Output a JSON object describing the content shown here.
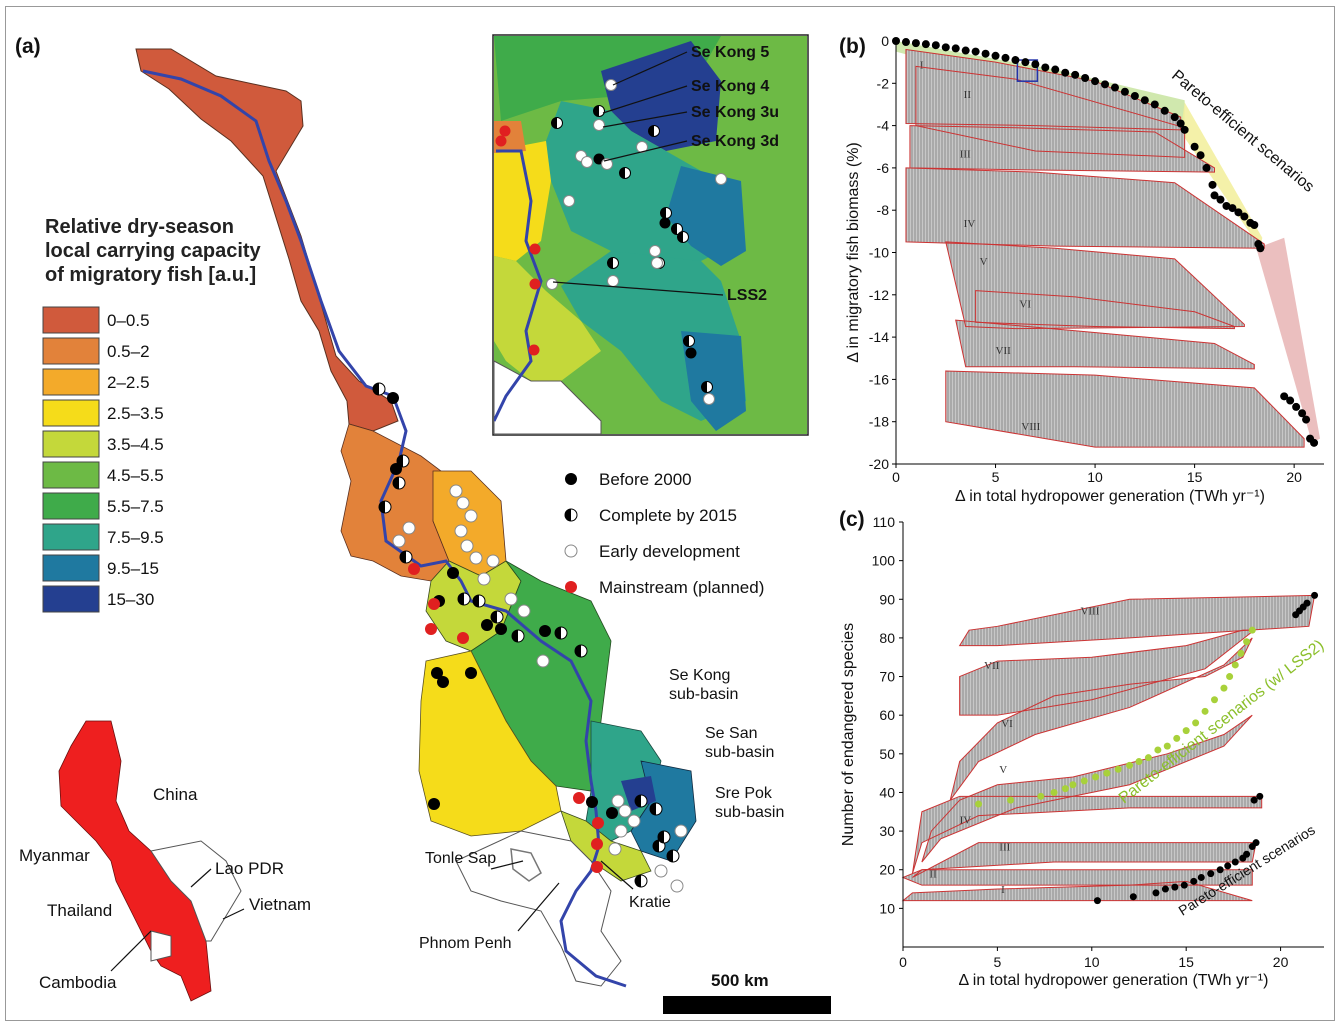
{
  "panels": {
    "a": "(a)",
    "b": "(b)",
    "c": "(c)"
  },
  "legend": {
    "title_lines": [
      "Relative dry-season",
      "local carrying capacity",
      "of migratory fish [a.u.]"
    ],
    "items": [
      {
        "label": "0–0.5",
        "color": "#d05a3c"
      },
      {
        "label": "0.5–2",
        "color": "#e2823a"
      },
      {
        "label": "2–2.5",
        "color": "#f3aa2a"
      },
      {
        "label": "2.5–3.5",
        "color": "#f5dc1a"
      },
      {
        "label": "3.5–4.5",
        "color": "#c4d83a"
      },
      {
        "label": "4.5–5.5",
        "color": "#6dba45"
      },
      {
        "label": "5.5–7.5",
        "color": "#3fab4a"
      },
      {
        "label": "7.5–9.5",
        "color": "#2fa58a"
      },
      {
        "label": "9.5–15",
        "color": "#1f79a0"
      },
      {
        "label": "15–30",
        "color": "#243f90"
      }
    ]
  },
  "dam_legend": [
    {
      "label": "Before 2000",
      "type": "before"
    },
    {
      "label": "Complete by 2015",
      "type": "complete"
    },
    {
      "label": "Early development",
      "type": "early"
    },
    {
      "label": "Mainstream (planned)",
      "type": "mainstream"
    }
  ],
  "inset_labels": [
    "Se Kong 5",
    "Se Kong 4",
    "Se Kong 3u",
    "Se Kong 3d",
    "LSS2"
  ],
  "map_labels": {
    "sekong": [
      "Se Kong",
      "sub-basin"
    ],
    "sesan": [
      "Se San",
      "sub-basin"
    ],
    "srepok": [
      "Sre Pok",
      "sub-basin"
    ],
    "tonle_sap": "Tonle Sap",
    "phnom_penh": "Phnom Penh",
    "kratie": "Kratie"
  },
  "countries": [
    "China",
    "Myanmar",
    "Lao PDR",
    "Thailand",
    "Vietnam",
    "Cambodia"
  ],
  "scale_bar": "500 km",
  "chart_data": [
    {
      "type": "scatter",
      "panel": "(b)",
      "xlabel": "Δ in total hydropower generation (TWh yr⁻¹)",
      "ylabel": "Δ in migratory fish biomass (%)",
      "xlim": [
        0,
        21.5
      ],
      "ylim": [
        -20,
        0
      ],
      "xticks": [
        0,
        5,
        10,
        15,
        20
      ],
      "yticks": [
        0,
        -2,
        -4,
        -6,
        -8,
        -10,
        -12,
        -14,
        -16,
        -18,
        -20
      ],
      "annotation": "Pareto-efficient scenarios",
      "groups": [
        "I",
        "II",
        "III",
        "IV",
        "V",
        "VI",
        "VII",
        "VIII"
      ],
      "pareto_front": [
        [
          0,
          0
        ],
        [
          0.5,
          -0.05
        ],
        [
          1,
          -0.1
        ],
        [
          1.5,
          -0.15
        ],
        [
          2,
          -0.2
        ],
        [
          2.5,
          -0.3
        ],
        [
          3,
          -0.35
        ],
        [
          3.5,
          -0.45
        ],
        [
          4,
          -0.5
        ],
        [
          4.5,
          -0.6
        ],
        [
          5,
          -0.7
        ],
        [
          5.5,
          -0.8
        ],
        [
          6,
          -0.9
        ],
        [
          6.5,
          -1.0
        ],
        [
          7,
          -1.1
        ],
        [
          7.5,
          -1.25
        ],
        [
          8,
          -1.35
        ],
        [
          8.5,
          -1.5
        ],
        [
          9,
          -1.6
        ],
        [
          9.5,
          -1.75
        ],
        [
          10,
          -1.9
        ],
        [
          10.5,
          -2.05
        ],
        [
          11,
          -2.2
        ],
        [
          11.5,
          -2.4
        ],
        [
          12,
          -2.6
        ],
        [
          12.5,
          -2.8
        ],
        [
          13,
          -3.0
        ],
        [
          13.5,
          -3.3
        ],
        [
          14,
          -3.6
        ],
        [
          14.3,
          -3.9
        ],
        [
          14.5,
          -4.2
        ],
        [
          15,
          -5.0
        ],
        [
          15.3,
          -5.4
        ],
        [
          15.6,
          -6.0
        ],
        [
          15.9,
          -6.8
        ],
        [
          16,
          -7.3
        ],
        [
          16.3,
          -7.5
        ],
        [
          16.6,
          -7.8
        ],
        [
          16.9,
          -7.9
        ],
        [
          17.2,
          -8.1
        ],
        [
          17.5,
          -8.3
        ],
        [
          17.8,
          -8.6
        ],
        [
          18,
          -8.7
        ],
        [
          18.2,
          -9.6
        ],
        [
          18.3,
          -9.8
        ],
        [
          19.5,
          -16.8
        ],
        [
          19.8,
          -17.0
        ],
        [
          20.1,
          -17.3
        ],
        [
          20.4,
          -17.6
        ],
        [
          20.6,
          -17.9
        ],
        [
          20.8,
          -18.8
        ],
        [
          21.0,
          -19.0
        ]
      ]
    },
    {
      "type": "scatter",
      "panel": "(c)",
      "xlabel": "Δ in total hydropower generation (TWh yr⁻¹)",
      "ylabel": "Number of endangered species",
      "xlim": [
        0,
        22.3
      ],
      "ylim": [
        0,
        110
      ],
      "xticks": [
        0,
        5,
        10,
        15,
        20
      ],
      "yticks": [
        10,
        20,
        30,
        40,
        50,
        60,
        70,
        80,
        90,
        100,
        110
      ],
      "annotations": [
        "Pareto-efficient scenarios (w/ LSS2)",
        "Pareto-efficient scenarios"
      ],
      "groups": [
        "I",
        "II",
        "III",
        "IV",
        "V",
        "VI",
        "VII",
        "VIII"
      ],
      "pareto_black": [
        [
          10.3,
          12
        ],
        [
          12.2,
          13
        ],
        [
          13.4,
          14
        ],
        [
          13.9,
          15
        ],
        [
          14.4,
          15.5
        ],
        [
          14.9,
          16
        ],
        [
          15.4,
          17
        ],
        [
          15.8,
          18
        ],
        [
          16.3,
          19
        ],
        [
          16.8,
          20
        ],
        [
          17.2,
          21
        ],
        [
          17.6,
          22
        ],
        [
          18.0,
          23
        ],
        [
          18.2,
          24
        ],
        [
          18.5,
          26
        ],
        [
          18.7,
          27
        ],
        [
          18.6,
          38
        ],
        [
          18.9,
          39
        ],
        [
          20.8,
          86
        ],
        [
          21.0,
          87
        ],
        [
          21.2,
          88
        ],
        [
          21.4,
          89
        ],
        [
          21.8,
          91
        ]
      ],
      "pareto_green": [
        [
          4.0,
          37
        ],
        [
          5.7,
          38
        ],
        [
          7.3,
          39
        ],
        [
          8.0,
          40
        ],
        [
          8.6,
          41
        ],
        [
          9.0,
          42
        ],
        [
          9.6,
          43
        ],
        [
          10.2,
          44
        ],
        [
          10.8,
          45
        ],
        [
          11.4,
          46
        ],
        [
          12.0,
          47
        ],
        [
          12.5,
          48
        ],
        [
          13.0,
          49
        ],
        [
          13.5,
          51
        ],
        [
          14.0,
          52
        ],
        [
          14.5,
          54
        ],
        [
          15.0,
          56
        ],
        [
          15.5,
          58
        ],
        [
          16.0,
          61
        ],
        [
          16.5,
          64
        ],
        [
          17.0,
          67
        ],
        [
          17.3,
          70
        ],
        [
          17.6,
          73
        ],
        [
          17.9,
          76
        ],
        [
          18.2,
          79
        ],
        [
          18.5,
          82
        ]
      ]
    }
  ]
}
